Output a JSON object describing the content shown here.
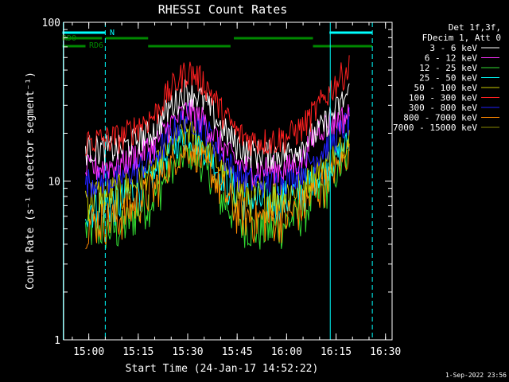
{
  "chart_data": {
    "type": "line",
    "title": "RHESSI Count Rates",
    "xlabel": "Start Time (24-Jan-17 14:52:22)",
    "ylabel": "Count Rate (s⁻¹ detector segment⁻¹)",
    "yscale": "log",
    "ylim": [
      1,
      100
    ],
    "xlim": [
      "14:52:22",
      "16:32:00"
    ],
    "x_tick_labels": [
      "15:00",
      "15:15",
      "15:30",
      "15:45",
      "16:00",
      "16:15",
      "16:30"
    ],
    "y_tick_labels": [
      "1",
      "10",
      "100"
    ],
    "grid": false,
    "legend_placement": "right",
    "legend_header": [
      "Det 1f,3f,",
      "FDecim 1, Att 0"
    ],
    "data_start": "14:59",
    "data_end": "16:19",
    "series": [
      {
        "name": "3 - 6 keV",
        "color": "#ffffff",
        "x": [
          "15:00",
          "15:10",
          "15:20",
          "15:25",
          "15:30",
          "15:35",
          "15:40",
          "15:45",
          "15:50",
          "15:55",
          "16:00",
          "16:05",
          "16:10",
          "16:15",
          "16:19"
        ],
        "values": [
          16,
          16,
          21,
          30,
          38,
          32,
          22,
          17,
          15,
          15,
          15,
          17,
          21,
          28,
          36
        ]
      },
      {
        "name": "6 - 12 keV",
        "color": "#ff33ff",
        "x": [
          "15:00",
          "15:10",
          "15:20",
          "15:25",
          "15:30",
          "15:35",
          "15:40",
          "15:45",
          "15:50",
          "15:55",
          "16:00",
          "16:05",
          "16:10",
          "16:15",
          "16:19"
        ],
        "values": [
          12,
          13,
          17,
          23,
          28,
          24,
          17,
          13,
          12,
          12,
          12,
          14,
          22,
          24,
          26
        ]
      },
      {
        "name": "12 - 25 keV",
        "color": "#33dd33",
        "x": [
          "15:00",
          "15:10",
          "15:20",
          "15:25",
          "15:30",
          "15:35",
          "15:40",
          "15:45",
          "15:50",
          "15:55",
          "16:00",
          "16:05",
          "16:10",
          "16:15",
          "16:19"
        ],
        "values": [
          5,
          5,
          8,
          12,
          15,
          12,
          8,
          6,
          5,
          5,
          5.5,
          6.5,
          8.5,
          11,
          14
        ]
      },
      {
        "name": "25 - 50 keV",
        "color": "#00ffff",
        "x": [
          "15:00",
          "15:10",
          "15:20",
          "15:25",
          "15:30",
          "15:35",
          "15:40",
          "15:45",
          "15:50",
          "15:55",
          "16:00",
          "16:05",
          "16:10",
          "16:15",
          "16:19"
        ],
        "values": [
          7,
          7.5,
          11,
          16,
          20,
          16,
          11,
          8.5,
          7.5,
          7.5,
          7.8,
          9,
          11,
          14,
          18
        ]
      },
      {
        "name": "50 - 100 keV",
        "color": "#cccc00",
        "x": [
          "15:00",
          "15:10",
          "15:20",
          "15:25",
          "15:30",
          "15:35",
          "15:40",
          "15:45",
          "15:50",
          "15:55",
          "16:00",
          "16:05",
          "16:10",
          "16:15",
          "16:19"
        ],
        "values": [
          8,
          8.5,
          12,
          17,
          21,
          17,
          12,
          9,
          8,
          8,
          8.5,
          9.5,
          12,
          15,
          19
        ]
      },
      {
        "name": "100 - 300 keV",
        "color": "#ff2020",
        "x": [
          "15:00",
          "15:10",
          "15:20",
          "15:25",
          "15:30",
          "15:35",
          "15:40",
          "15:45",
          "15:50",
          "15:55",
          "16:00",
          "16:05",
          "16:10",
          "16:15",
          "16:19"
        ],
        "values": [
          18,
          19,
          26,
          38,
          50,
          42,
          28,
          20,
          18,
          18,
          19,
          22,
          30,
          42,
          52
        ]
      },
      {
        "name": "300 - 800 keV",
        "color": "#2020ff",
        "x": [
          "15:00",
          "15:10",
          "15:20",
          "15:25",
          "15:30",
          "15:35",
          "15:40",
          "15:45",
          "15:50",
          "15:55",
          "16:00",
          "16:05",
          "16:10",
          "16:15",
          "16:19"
        ],
        "values": [
          10,
          10.5,
          14,
          20,
          26,
          22,
          15,
          11,
          10,
          10,
          10.5,
          12,
          15,
          19,
          24
        ]
      },
      {
        "name": "800 - 7000 keV",
        "color": "#ff8800",
        "x": [
          "15:00",
          "15:10",
          "15:20",
          "15:25",
          "15:30",
          "15:35",
          "15:40",
          "15:45",
          "15:50",
          "15:55",
          "16:00",
          "16:05",
          "16:10",
          "16:15",
          "16:19"
        ],
        "values": [
          5.5,
          6,
          9,
          13,
          16,
          13,
          9,
          6.5,
          5.8,
          5.8,
          6,
          7,
          9,
          12,
          15
        ]
      },
      {
        "name": "7000 - 15000 keV",
        "color": "#888800",
        "x": [],
        "values": []
      }
    ],
    "overlays": {
      "N": {
        "label": "N",
        "color": "#00ffff",
        "intervals": [
          [
            "14:52",
            "15:05"
          ],
          [
            "16:13",
            "16:26"
          ]
        ]
      },
      "RD0": {
        "label": "RD0",
        "color": "#008800",
        "intervals": [
          [
            "14:52",
            "15:04"
          ],
          [
            "15:05",
            "15:18"
          ],
          [
            "15:44",
            "16:08"
          ]
        ]
      },
      "RD6": {
        "label": "RD6",
        "color": "#008800",
        "intervals": [
          [
            "14:52",
            "14:59"
          ],
          [
            "15:18",
            "15:43"
          ],
          [
            "16:08",
            "16:26"
          ]
        ]
      },
      "vlines_cyan_dashed": [
        "15:05",
        "16:26"
      ],
      "vlines_cyan_solid": [
        "14:52",
        "16:13"
      ]
    }
  },
  "timestamp": "1-Sep-2022 23:56"
}
